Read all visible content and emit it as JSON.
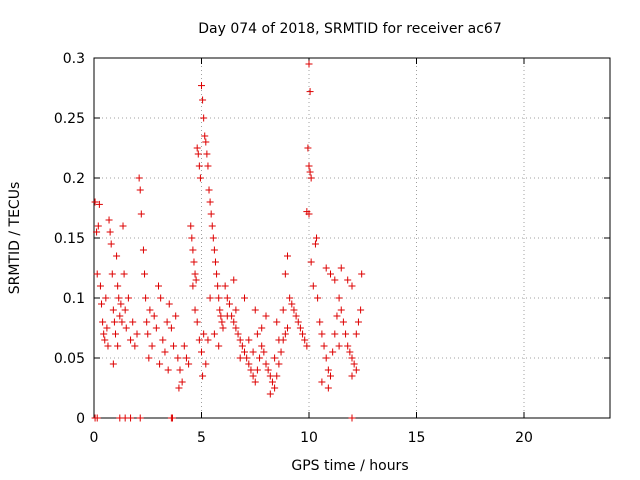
{
  "chart_data": {
    "type": "scatter",
    "title": "Day 074 of 2018, SRMTID for receiver ac67",
    "xlabel": "GPS time / hours",
    "ylabel": "SRMTID / TECUs",
    "xlim": [
      0,
      24
    ],
    "ylim": [
      0,
      0.3
    ],
    "xticks": [
      0,
      5,
      10,
      15,
      20
    ],
    "xtick_labels": [
      "0",
      "5",
      "10",
      "15",
      "20"
    ],
    "yticks": [
      0,
      0.05,
      0.1,
      0.15,
      0.2,
      0.25,
      0.3
    ],
    "ytick_labels": [
      "0",
      "0.05",
      "0.1",
      "0.15",
      "0.2",
      "0.25",
      "0.3"
    ],
    "grid": true,
    "legend": "none",
    "marker": "+",
    "color": "#dd0000",
    "series": [
      {
        "name": "SRMTID",
        "points": [
          [
            0.05,
            0.18
          ],
          [
            0.12,
            0.155
          ],
          [
            0.15,
            0.12
          ],
          [
            0.2,
            0.16
          ],
          [
            0.25,
            0.178
          ],
          [
            0.3,
            0.11
          ],
          [
            0.35,
            0.095
          ],
          [
            0.4,
            0.08
          ],
          [
            0.45,
            0.07
          ],
          [
            0.5,
            0.065
          ],
          [
            0.55,
            0.1
          ],
          [
            0.6,
            0.075
          ],
          [
            0.65,
            0.06
          ],
          [
            0.7,
            0.165
          ],
          [
            0.75,
            0.155
          ],
          [
            0.8,
            0.145
          ],
          [
            0.85,
            0.12
          ],
          [
            0.9,
            0.09
          ],
          [
            0.95,
            0.08
          ],
          [
            1.0,
            0.07
          ],
          [
            1.05,
            0.135
          ],
          [
            1.1,
            0.11
          ],
          [
            1.15,
            0.1
          ],
          [
            1.2,
            0.085
          ],
          [
            1.25,
            0.095
          ],
          [
            1.3,
            0.08
          ],
          [
            1.35,
            0.16
          ],
          [
            1.4,
            0.12
          ],
          [
            1.45,
            0.09
          ],
          [
            1.5,
            0.075
          ],
          [
            1.6,
            0.1
          ],
          [
            1.7,
            0.065
          ],
          [
            1.8,
            0.08
          ],
          [
            1.9,
            0.06
          ],
          [
            2.0,
            0.07
          ],
          [
            0.9,
            0.045
          ],
          [
            1.1,
            0.06
          ],
          [
            2.1,
            0.2
          ],
          [
            2.15,
            0.19
          ],
          [
            2.2,
            0.17
          ],
          [
            2.3,
            0.14
          ],
          [
            2.35,
            0.12
          ],
          [
            2.4,
            0.1
          ],
          [
            2.45,
            0.08
          ],
          [
            2.5,
            0.07
          ],
          [
            2.6,
            0.09
          ],
          [
            2.7,
            0.06
          ],
          [
            2.8,
            0.085
          ],
          [
            2.9,
            0.075
          ],
          [
            3.0,
            0.11
          ],
          [
            3.1,
            0.1
          ],
          [
            3.2,
            0.065
          ],
          [
            3.3,
            0.055
          ],
          [
            3.4,
            0.08
          ],
          [
            3.5,
            0.095
          ],
          [
            3.6,
            0.075
          ],
          [
            3.7,
            0.06
          ],
          [
            3.8,
            0.085
          ],
          [
            3.9,
            0.05
          ],
          [
            4.0,
            0.04
          ],
          [
            4.1,
            0.03
          ],
          [
            4.2,
            0.06
          ],
          [
            3.95,
            0.025
          ],
          [
            4.3,
            0.05
          ],
          [
            4.4,
            0.045
          ],
          [
            2.55,
            0.05
          ],
          [
            3.05,
            0.045
          ],
          [
            3.45,
            0.04
          ],
          [
            4.5,
            0.16
          ],
          [
            4.55,
            0.15
          ],
          [
            4.6,
            0.14
          ],
          [
            4.65,
            0.13
          ],
          [
            4.7,
            0.12
          ],
          [
            4.75,
            0.115
          ],
          [
            4.8,
            0.225
          ],
          [
            4.85,
            0.22
          ],
          [
            4.9,
            0.21
          ],
          [
            4.95,
            0.2
          ],
          [
            5.0,
            0.277
          ],
          [
            5.05,
            0.265
          ],
          [
            5.1,
            0.25
          ],
          [
            5.15,
            0.235
          ],
          [
            5.2,
            0.23
          ],
          [
            5.25,
            0.22
          ],
          [
            5.3,
            0.21
          ],
          [
            5.35,
            0.19
          ],
          [
            5.4,
            0.18
          ],
          [
            5.45,
            0.17
          ],
          [
            5.5,
            0.16
          ],
          [
            5.55,
            0.15
          ],
          [
            5.6,
            0.14
          ],
          [
            5.65,
            0.13
          ],
          [
            5.7,
            0.12
          ],
          [
            5.75,
            0.11
          ],
          [
            5.8,
            0.1
          ],
          [
            5.85,
            0.09
          ],
          [
            5.9,
            0.085
          ],
          [
            5.95,
            0.08
          ],
          [
            6.0,
            0.075
          ],
          [
            4.6,
            0.11
          ],
          [
            4.7,
            0.09
          ],
          [
            4.8,
            0.08
          ],
          [
            4.9,
            0.065
          ],
          [
            5.0,
            0.055
          ],
          [
            5.1,
            0.07
          ],
          [
            5.2,
            0.045
          ],
          [
            5.3,
            0.065
          ],
          [
            5.4,
            0.1
          ],
          [
            5.6,
            0.07
          ],
          [
            5.8,
            0.06
          ],
          [
            5.05,
            0.035
          ],
          [
            6.1,
            0.11
          ],
          [
            6.2,
            0.1
          ],
          [
            6.3,
            0.095
          ],
          [
            6.4,
            0.085
          ],
          [
            6.5,
            0.08
          ],
          [
            6.6,
            0.075
          ],
          [
            6.7,
            0.07
          ],
          [
            6.8,
            0.065
          ],
          [
            6.9,
            0.06
          ],
          [
            7.0,
            0.055
          ],
          [
            7.1,
            0.05
          ],
          [
            7.2,
            0.045
          ],
          [
            7.3,
            0.04
          ],
          [
            7.4,
            0.035
          ],
          [
            7.5,
            0.03
          ],
          [
            7.6,
            0.04
          ],
          [
            7.7,
            0.05
          ],
          [
            7.8,
            0.06
          ],
          [
            7.9,
            0.055
          ],
          [
            8.0,
            0.045
          ],
          [
            8.1,
            0.04
          ],
          [
            8.2,
            0.035
          ],
          [
            8.3,
            0.03
          ],
          [
            8.4,
            0.025
          ],
          [
            8.5,
            0.035
          ],
          [
            8.6,
            0.045
          ],
          [
            8.7,
            0.055
          ],
          [
            8.8,
            0.065
          ],
          [
            8.9,
            0.07
          ],
          [
            9.0,
            0.075
          ],
          [
            6.5,
            0.115
          ],
          [
            7.0,
            0.1
          ],
          [
            7.5,
            0.09
          ],
          [
            8.0,
            0.085
          ],
          [
            8.5,
            0.08
          ],
          [
            8.8,
            0.09
          ],
          [
            8.9,
            0.12
          ],
          [
            9.0,
            0.135
          ],
          [
            6.2,
            0.085
          ],
          [
            6.8,
            0.05
          ],
          [
            7.2,
            0.065
          ],
          [
            7.8,
            0.075
          ],
          [
            8.2,
            0.02
          ],
          [
            8.4,
            0.05
          ],
          [
            8.6,
            0.065
          ],
          [
            7.4,
            0.055
          ],
          [
            6.6,
            0.09
          ],
          [
            7.6,
            0.07
          ],
          [
            9.1,
            0.1
          ],
          [
            9.2,
            0.095
          ],
          [
            9.3,
            0.09
          ],
          [
            9.4,
            0.085
          ],
          [
            9.5,
            0.08
          ],
          [
            9.6,
            0.075
          ],
          [
            9.7,
            0.07
          ],
          [
            9.8,
            0.065
          ],
          [
            9.9,
            0.06
          ],
          [
            10.0,
            0.295
          ],
          [
            9.95,
            0.225
          ],
          [
            10.0,
            0.21
          ],
          [
            10.05,
            0.205
          ],
          [
            10.1,
            0.2
          ],
          [
            9.9,
            0.172
          ],
          [
            10.0,
            0.17
          ],
          [
            10.05,
            0.272
          ],
          [
            10.1,
            0.13
          ],
          [
            10.2,
            0.11
          ],
          [
            10.3,
            0.145
          ],
          [
            10.35,
            0.15
          ],
          [
            10.4,
            0.1
          ],
          [
            10.5,
            0.08
          ],
          [
            10.6,
            0.07
          ],
          [
            10.7,
            0.06
          ],
          [
            10.8,
            0.05
          ],
          [
            10.9,
            0.04
          ],
          [
            11.0,
            0.035
          ],
          [
            11.1,
            0.055
          ],
          [
            11.2,
            0.07
          ],
          [
            11.3,
            0.085
          ],
          [
            11.4,
            0.1
          ],
          [
            11.5,
            0.09
          ],
          [
            11.6,
            0.08
          ],
          [
            11.7,
            0.07
          ],
          [
            11.8,
            0.06
          ],
          [
            11.9,
            0.055
          ],
          [
            12.0,
            0.05
          ],
          [
            12.1,
            0.045
          ],
          [
            12.2,
            0.04
          ],
          [
            12.3,
            0.08
          ],
          [
            12.4,
            0.09
          ],
          [
            12.45,
            0.12
          ],
          [
            10.8,
            0.125
          ],
          [
            11.0,
            0.12
          ],
          [
            11.2,
            0.115
          ],
          [
            11.5,
            0.125
          ],
          [
            11.8,
            0.115
          ],
          [
            12.0,
            0.11
          ],
          [
            12.2,
            0.07
          ],
          [
            10.6,
            0.03
          ],
          [
            10.9,
            0.025
          ],
          [
            11.4,
            0.06
          ],
          [
            12.0,
            0.035
          ]
        ]
      }
    ],
    "zero_points_x": [
      0.05,
      0.15,
      1.2,
      1.45,
      1.7,
      2.15,
      3.6,
      3.65,
      12.0
    ]
  }
}
